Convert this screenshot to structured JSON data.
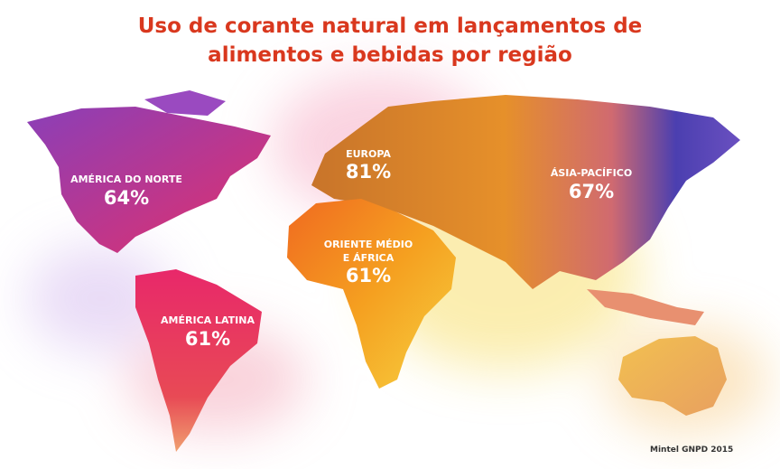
{
  "title_lines": [
    "Uso de corante natural em lançamentos de",
    "alimentos e bebidas por região"
  ],
  "regions": [
    {
      "name": "AMÉRICA DO NORTE",
      "value": "64%"
    },
    {
      "name": "EUROPA",
      "value": "81%"
    },
    {
      "name": "ÁSIA-PACÍFICO",
      "value": "67%"
    },
    {
      "name_lines": [
        "ORIENTE MÉDIO",
        "E ÁFRICA"
      ],
      "value": "61%"
    },
    {
      "name": "AMÉRICA LATINA",
      "value": "61%"
    }
  ],
  "source": "Mintel GNPD 2015"
}
